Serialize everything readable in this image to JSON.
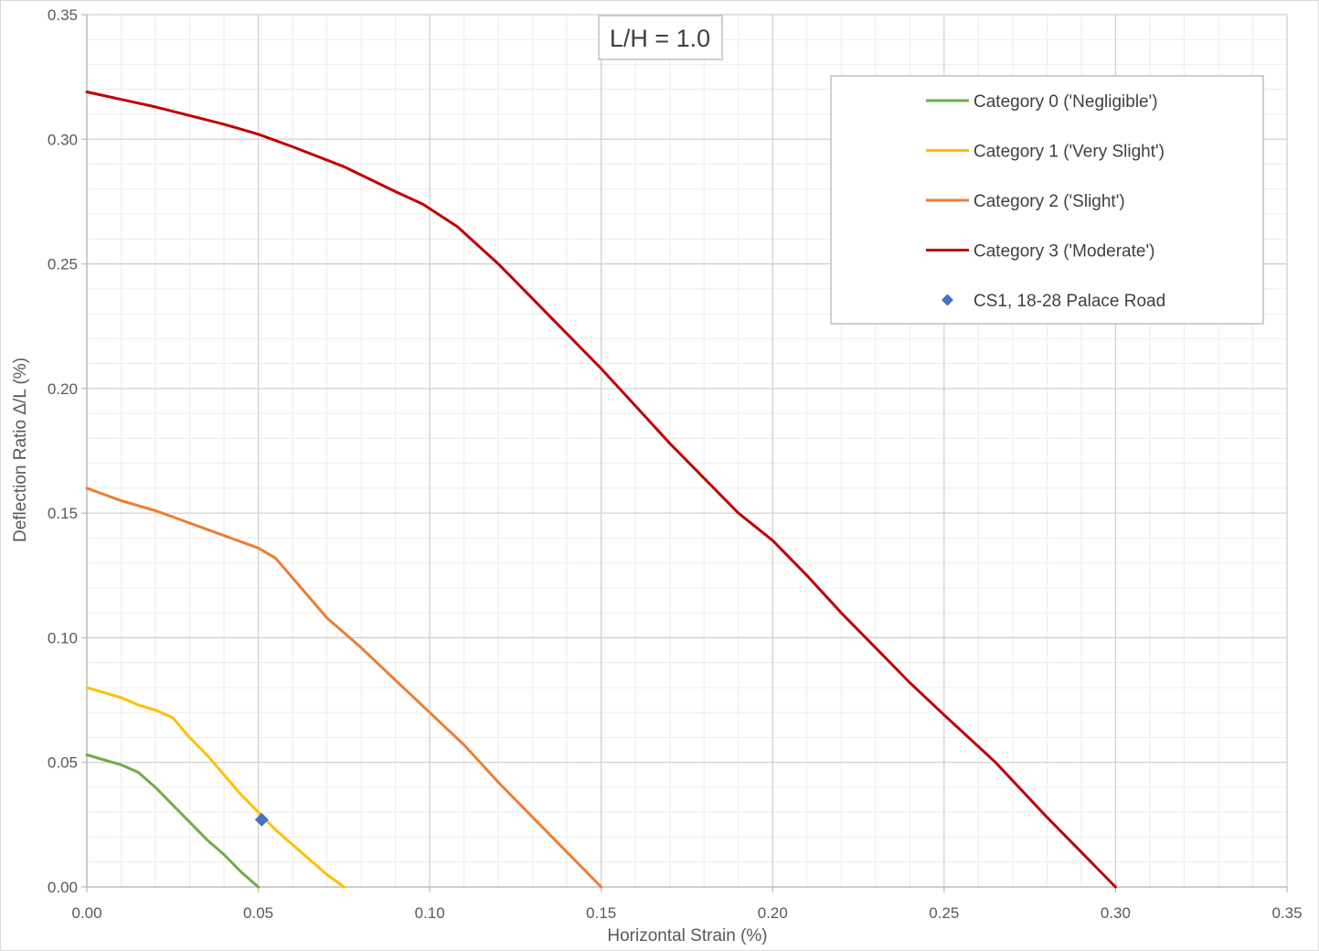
{
  "chart_data": {
    "type": "line",
    "title": "L/H = 1.0",
    "xlabel": "Horizontal Strain (%)",
    "ylabel": "Deflection Ratio Δ/L (%)",
    "xlim": [
      0,
      0.35
    ],
    "ylim": [
      0,
      0.35
    ],
    "x_ticks": [
      "0.00",
      "0.05",
      "0.10",
      "0.15",
      "0.20",
      "0.25",
      "0.30",
      "0.35"
    ],
    "y_ticks": [
      "0.00",
      "0.05",
      "0.10",
      "0.15",
      "0.20",
      "0.25",
      "0.30",
      "0.35"
    ],
    "grid": true,
    "legend_position": "top-right",
    "series": [
      {
        "name": "Category 0 ('Negligible')",
        "kind": "line",
        "color": "#70ad47",
        "points": [
          [
            0,
            0.053
          ],
          [
            0.005,
            0.051
          ],
          [
            0.01,
            0.049
          ],
          [
            0.015,
            0.046
          ],
          [
            0.02,
            0.04
          ],
          [
            0.025,
            0.033
          ],
          [
            0.03,
            0.026
          ],
          [
            0.035,
            0.019
          ],
          [
            0.04,
            0.013
          ],
          [
            0.045,
            0.006
          ],
          [
            0.05,
            0.0
          ]
        ]
      },
      {
        "name": "Category 1 ('Very Slight')",
        "kind": "line",
        "color": "#ffc000",
        "points": [
          [
            0,
            0.08
          ],
          [
            0.005,
            0.078
          ],
          [
            0.01,
            0.076
          ],
          [
            0.015,
            0.073
          ],
          [
            0.02,
            0.071
          ],
          [
            0.025,
            0.068
          ],
          [
            0.03,
            0.06
          ],
          [
            0.035,
            0.053
          ],
          [
            0.04,
            0.045
          ],
          [
            0.045,
            0.037
          ],
          [
            0.05,
            0.03
          ],
          [
            0.055,
            0.023
          ],
          [
            0.06,
            0.017
          ],
          [
            0.065,
            0.011
          ],
          [
            0.07,
            0.005
          ],
          [
            0.075,
            0.0
          ]
        ]
      },
      {
        "name": "Category 2 ('Slight')",
        "kind": "line",
        "color": "#ed7d31",
        "points": [
          [
            0,
            0.16
          ],
          [
            0.01,
            0.155
          ],
          [
            0.02,
            0.151
          ],
          [
            0.03,
            0.146
          ],
          [
            0.04,
            0.141
          ],
          [
            0.05,
            0.136
          ],
          [
            0.055,
            0.132
          ],
          [
            0.06,
            0.124
          ],
          [
            0.07,
            0.108
          ],
          [
            0.08,
            0.096
          ],
          [
            0.09,
            0.083
          ],
          [
            0.1,
            0.07
          ],
          [
            0.11,
            0.057
          ],
          [
            0.12,
            0.042
          ],
          [
            0.13,
            0.028
          ],
          [
            0.14,
            0.014
          ],
          [
            0.15,
            0.0
          ]
        ]
      },
      {
        "name": "Category 3 ('Moderate')",
        "kind": "line",
        "color": "#c00000",
        "points": [
          [
            0,
            0.319
          ],
          [
            0.02,
            0.313
          ],
          [
            0.04,
            0.306
          ],
          [
            0.05,
            0.302
          ],
          [
            0.06,
            0.297
          ],
          [
            0.075,
            0.289
          ],
          [
            0.09,
            0.279
          ],
          [
            0.098,
            0.274
          ],
          [
            0.108,
            0.265
          ],
          [
            0.12,
            0.25
          ],
          [
            0.13,
            0.236
          ],
          [
            0.14,
            0.222
          ],
          [
            0.15,
            0.208
          ],
          [
            0.16,
            0.193
          ],
          [
            0.17,
            0.178
          ],
          [
            0.18,
            0.164
          ],
          [
            0.19,
            0.15
          ],
          [
            0.2,
            0.139
          ],
          [
            0.21,
            0.125
          ],
          [
            0.22,
            0.11
          ],
          [
            0.23,
            0.096
          ],
          [
            0.24,
            0.082
          ],
          [
            0.25,
            0.069
          ],
          [
            0.265,
            0.05
          ],
          [
            0.28,
            0.028
          ],
          [
            0.29,
            0.014
          ],
          [
            0.3,
            0.0
          ]
        ]
      },
      {
        "name": "CS1, 18-28 Palace Road",
        "kind": "marker",
        "color": "#4472c4",
        "points": [
          [
            0.051,
            0.027
          ]
        ]
      }
    ]
  }
}
